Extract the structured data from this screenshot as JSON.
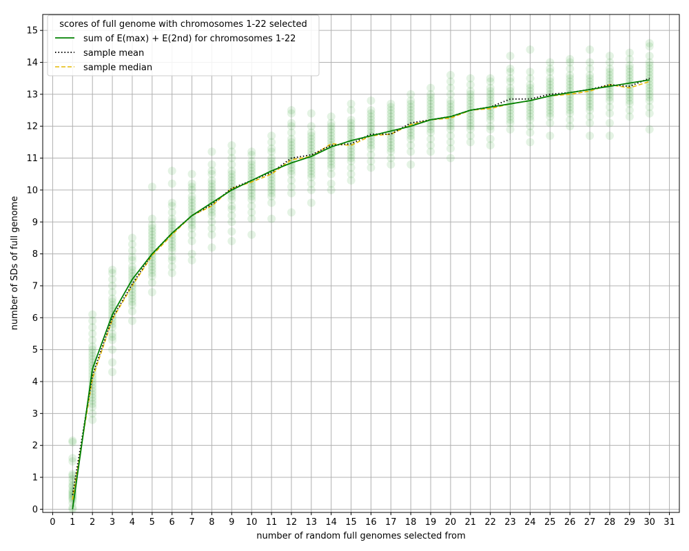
{
  "chart_data": {
    "type": "scatter",
    "title": "",
    "xlabel": "number of random full genomes selected from",
    "ylabel": "number of SDs of full genome",
    "xlim": [
      -0.5,
      31.5
    ],
    "ylim": [
      -0.1,
      15.5
    ],
    "xticks": [
      0,
      1,
      2,
      3,
      4,
      5,
      6,
      7,
      8,
      9,
      10,
      11,
      12,
      13,
      14,
      15,
      16,
      17,
      18,
      19,
      20,
      21,
      22,
      23,
      24,
      25,
      26,
      27,
      28,
      29,
      30,
      31
    ],
    "yticks": [
      0,
      1,
      2,
      3,
      4,
      5,
      6,
      7,
      8,
      9,
      10,
      11,
      12,
      13,
      14,
      15
    ],
    "grid": true,
    "legend": {
      "placement": "top-left",
      "title": "scores of full genome with chromosomes 1-22 selected",
      "entries": [
        {
          "label": "sum of E(max) + E(2nd) for chromosomes 1-22",
          "color": "#008000",
          "style": "solid"
        },
        {
          "label": "sample mean",
          "color": "#000000",
          "style": "dotted"
        },
        {
          "label": "sample median",
          "color": "#e6b800",
          "style": "dashed"
        }
      ]
    },
    "scatter_color": "#2ca02c",
    "x": [
      1,
      2,
      3,
      4,
      5,
      6,
      7,
      8,
      9,
      10,
      11,
      12,
      13,
      14,
      15,
      16,
      17,
      18,
      19,
      20,
      21,
      22,
      23,
      24,
      25,
      26,
      27,
      28,
      29,
      30
    ],
    "series": [
      {
        "name": "sum of E(max) + E(2nd) for chromosomes 1-22",
        "color": "#008000",
        "values": [
          0.0,
          4.4,
          6.1,
          7.2,
          8.0,
          8.65,
          9.2,
          9.6,
          10.0,
          10.3,
          10.6,
          10.85,
          11.05,
          11.35,
          11.55,
          11.7,
          11.85,
          12.0,
          12.2,
          12.3,
          12.5,
          12.6,
          12.7,
          12.8,
          12.95,
          13.05,
          13.15,
          13.25,
          13.35,
          13.45
        ]
      },
      {
        "name": "sample mean",
        "color": "#000000",
        "values": [
          0.45,
          4.2,
          6.0,
          7.05,
          8.0,
          8.65,
          9.2,
          9.55,
          10.05,
          10.3,
          10.55,
          11.0,
          11.1,
          11.4,
          11.45,
          11.75,
          11.75,
          12.1,
          12.2,
          12.3,
          12.5,
          12.6,
          12.85,
          12.85,
          13.0,
          13.05,
          13.15,
          13.3,
          13.25,
          13.5
        ]
      },
      {
        "name": "sample median",
        "color": "#e6b800",
        "values": [
          0.3,
          4.1,
          5.95,
          7.0,
          7.95,
          8.6,
          9.2,
          9.5,
          10.05,
          10.25,
          10.5,
          10.95,
          11.05,
          11.45,
          11.4,
          11.7,
          11.75,
          12.05,
          12.2,
          12.25,
          12.5,
          12.55,
          12.7,
          12.8,
          12.95,
          13.0,
          13.1,
          13.3,
          13.2,
          13.4
        ]
      }
    ],
    "samples": [
      {
        "x": 1,
        "y": [
          0.0,
          0.05,
          0.2,
          0.3,
          0.35,
          0.4,
          0.45,
          0.5,
          0.55,
          0.6,
          0.7,
          0.75,
          0.85,
          0.95,
          1.05,
          1.1,
          1.5,
          1.6,
          2.1,
          2.15
        ]
      },
      {
        "x": 2,
        "y": [
          2.8,
          3.0,
          3.2,
          3.3,
          3.4,
          3.5,
          3.6,
          3.7,
          3.8,
          3.9,
          4.0,
          4.1,
          4.2,
          4.3,
          4.4,
          4.5,
          4.6,
          4.7,
          4.8,
          4.9,
          5.0,
          5.1,
          5.3,
          5.5,
          5.7,
          5.9,
          6.1
        ]
      },
      {
        "x": 3,
        "y": [
          4.3,
          4.6,
          5.0,
          5.3,
          5.4,
          5.5,
          5.7,
          5.8,
          5.9,
          6.0,
          6.1,
          6.2,
          6.3,
          6.4,
          6.5,
          6.6,
          6.8,
          7.0,
          7.2,
          7.4,
          7.5
        ]
      },
      {
        "x": 4,
        "y": [
          5.9,
          6.2,
          6.4,
          6.5,
          6.6,
          6.7,
          6.8,
          6.9,
          7.0,
          7.1,
          7.2,
          7.3,
          7.4,
          7.5,
          7.6,
          7.8,
          7.9,
          8.1,
          8.3,
          8.5
        ]
      },
      {
        "x": 5,
        "y": [
          6.8,
          7.1,
          7.3,
          7.4,
          7.5,
          7.6,
          7.7,
          7.8,
          7.9,
          8.0,
          8.1,
          8.2,
          8.3,
          8.4,
          8.5,
          8.6,
          8.7,
          8.8,
          8.9,
          9.1,
          10.1
        ]
      },
      {
        "x": 6,
        "y": [
          7.4,
          7.6,
          7.8,
          7.9,
          8.1,
          8.2,
          8.3,
          8.4,
          8.5,
          8.6,
          8.7,
          8.8,
          8.9,
          9.0,
          9.1,
          9.3,
          9.5,
          9.6,
          10.2,
          10.6
        ]
      },
      {
        "x": 7,
        "y": [
          7.8,
          8.0,
          8.4,
          8.6,
          8.8,
          8.9,
          9.0,
          9.1,
          9.2,
          9.3,
          9.4,
          9.5,
          9.6,
          9.7,
          9.8,
          10.0,
          10.1,
          10.2,
          10.5
        ]
      },
      {
        "x": 8,
        "y": [
          8.2,
          8.6,
          8.8,
          9.0,
          9.2,
          9.3,
          9.4,
          9.5,
          9.6,
          9.7,
          9.8,
          9.9,
          10.0,
          10.1,
          10.2,
          10.3,
          10.5,
          10.6,
          10.8,
          11.2
        ]
      },
      {
        "x": 9,
        "y": [
          8.4,
          8.7,
          9.0,
          9.2,
          9.4,
          9.5,
          9.7,
          9.8,
          9.9,
          10.0,
          10.1,
          10.2,
          10.3,
          10.4,
          10.5,
          10.6,
          10.8,
          11.0,
          11.2,
          11.4
        ]
      },
      {
        "x": 10,
        "y": [
          8.6,
          9.1,
          9.3,
          9.5,
          9.7,
          9.8,
          9.9,
          10.0,
          10.1,
          10.2,
          10.3,
          10.4,
          10.5,
          10.6,
          10.7,
          10.8,
          10.9,
          11.1,
          11.2
        ]
      },
      {
        "x": 11,
        "y": [
          9.1,
          9.6,
          9.8,
          9.9,
          10.0,
          10.1,
          10.2,
          10.3,
          10.4,
          10.5,
          10.6,
          10.7,
          10.8,
          10.9,
          11.0,
          11.2,
          11.3,
          11.5,
          11.7
        ]
      },
      {
        "x": 12,
        "y": [
          9.3,
          9.9,
          10.1,
          10.3,
          10.5,
          10.6,
          10.7,
          10.8,
          10.9,
          11.0,
          11.1,
          11.2,
          11.3,
          11.4,
          11.5,
          11.6,
          11.8,
          12.0,
          12.1,
          12.4,
          12.5
        ]
      },
      {
        "x": 13,
        "y": [
          9.6,
          10.0,
          10.2,
          10.4,
          10.5,
          10.6,
          10.7,
          10.8,
          10.9,
          11.0,
          11.1,
          11.2,
          11.3,
          11.4,
          11.5,
          11.6,
          11.7,
          11.8,
          12.0,
          12.4
        ]
      },
      {
        "x": 14,
        "y": [
          10.0,
          10.2,
          10.5,
          10.7,
          10.8,
          10.9,
          11.0,
          11.1,
          11.2,
          11.3,
          11.4,
          11.5,
          11.6,
          11.7,
          11.8,
          11.9,
          12.0,
          12.1,
          12.3
        ]
      },
      {
        "x": 15,
        "y": [
          10.3,
          10.5,
          10.7,
          10.9,
          11.0,
          11.1,
          11.2,
          11.3,
          11.4,
          11.5,
          11.6,
          11.7,
          11.8,
          11.9,
          12.0,
          12.1,
          12.2,
          12.5,
          12.7
        ]
      },
      {
        "x": 16,
        "y": [
          10.7,
          10.9,
          11.1,
          11.3,
          11.4,
          11.5,
          11.6,
          11.7,
          11.8,
          11.9,
          12.0,
          12.1,
          12.2,
          12.3,
          12.4,
          12.5,
          12.8
        ]
      },
      {
        "x": 17,
        "y": [
          10.8,
          11.0,
          11.2,
          11.3,
          11.4,
          11.5,
          11.6,
          11.7,
          11.8,
          11.9,
          12.0,
          12.1,
          12.2,
          12.3,
          12.4,
          12.5,
          12.6,
          12.7
        ]
      },
      {
        "x": 18,
        "y": [
          10.8,
          11.2,
          11.4,
          11.6,
          11.7,
          11.8,
          11.9,
          12.0,
          12.1,
          12.2,
          12.3,
          12.4,
          12.5,
          12.6,
          12.7,
          12.8,
          13.0
        ]
      },
      {
        "x": 19,
        "y": [
          11.2,
          11.4,
          11.6,
          11.8,
          11.9,
          12.0,
          12.1,
          12.2,
          12.3,
          12.4,
          12.5,
          12.6,
          12.7,
          12.8,
          12.9,
          13.0,
          13.2
        ]
      },
      {
        "x": 20,
        "y": [
          11.0,
          11.3,
          11.5,
          11.7,
          11.9,
          12.0,
          12.1,
          12.2,
          12.3,
          12.4,
          12.5,
          12.6,
          12.7,
          12.8,
          13.0,
          13.2,
          13.4,
          13.6
        ]
      },
      {
        "x": 21,
        "y": [
          11.5,
          11.7,
          11.9,
          12.0,
          12.1,
          12.2,
          12.3,
          12.4,
          12.5,
          12.6,
          12.7,
          12.8,
          12.9,
          13.0,
          13.1,
          13.3,
          13.5
        ]
      },
      {
        "x": 22,
        "y": [
          11.4,
          11.6,
          11.9,
          12.0,
          12.2,
          12.3,
          12.4,
          12.5,
          12.6,
          12.7,
          12.8,
          12.9,
          13.0,
          13.1,
          13.2,
          13.4,
          13.5
        ]
      },
      {
        "x": 23,
        "y": [
          11.9,
          12.1,
          12.2,
          12.3,
          12.4,
          12.5,
          12.6,
          12.7,
          12.8,
          12.9,
          13.0,
          13.1,
          13.2,
          13.4,
          13.5,
          13.7,
          13.8,
          14.2
        ]
      },
      {
        "x": 24,
        "y": [
          11.5,
          11.8,
          12.0,
          12.2,
          12.3,
          12.4,
          12.5,
          12.6,
          12.7,
          12.8,
          12.9,
          13.0,
          13.1,
          13.2,
          13.3,
          13.5,
          13.7,
          14.4
        ]
      },
      {
        "x": 25,
        "y": [
          11.7,
          12.1,
          12.3,
          12.4,
          12.5,
          12.6,
          12.7,
          12.8,
          12.9,
          13.0,
          13.1,
          13.2,
          13.3,
          13.4,
          13.5,
          13.7,
          13.8,
          14.0
        ]
      },
      {
        "x": 26,
        "y": [
          12.0,
          12.2,
          12.4,
          12.5,
          12.6,
          12.7,
          12.8,
          12.9,
          13.0,
          13.1,
          13.2,
          13.3,
          13.4,
          13.5,
          13.6,
          13.8,
          14.0,
          14.1
        ]
      },
      {
        "x": 27,
        "y": [
          11.7,
          12.1,
          12.3,
          12.5,
          12.6,
          12.7,
          12.8,
          12.9,
          13.0,
          13.1,
          13.2,
          13.3,
          13.4,
          13.5,
          13.6,
          13.8,
          14.0,
          14.4
        ]
      },
      {
        "x": 28,
        "y": [
          11.7,
          12.1,
          12.4,
          12.6,
          12.8,
          12.9,
          13.0,
          13.1,
          13.2,
          13.3,
          13.4,
          13.5,
          13.6,
          13.7,
          13.8,
          14.0,
          14.2
        ]
      },
      {
        "x": 29,
        "y": [
          12.3,
          12.5,
          12.7,
          12.8,
          12.9,
          13.0,
          13.1,
          13.2,
          13.3,
          13.4,
          13.5,
          13.6,
          13.7,
          13.8,
          13.9,
          14.1,
          14.3
        ]
      },
      {
        "x": 30,
        "y": [
          11.9,
          12.4,
          12.6,
          12.8,
          12.9,
          13.0,
          13.1,
          13.2,
          13.3,
          13.4,
          13.5,
          13.6,
          13.7,
          13.8,
          13.9,
          14.0,
          14.2,
          14.5,
          14.6
        ]
      }
    ]
  }
}
